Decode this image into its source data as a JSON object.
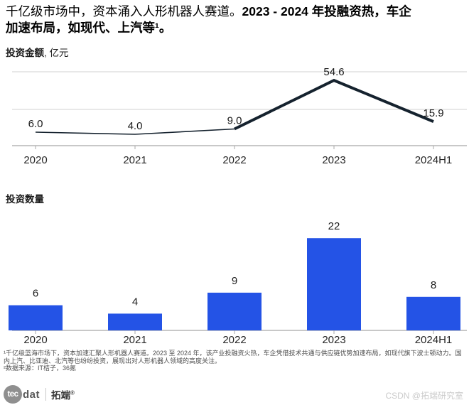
{
  "title": {
    "regular": "千亿级市场中，资本涌入人形机器人赛道。",
    "bold_line1": "2023 - 2024 年投融资热，车企",
    "bold_line2": "加速布局，如现代、上汽等¹。"
  },
  "sections": {
    "amount_label": "投资金额",
    "amount_unit": ", 亿元",
    "count_label": "投资数量"
  },
  "chart_data": [
    {
      "type": "line",
      "title": "投资金额",
      "unit": "亿元",
      "categories": [
        "2020",
        "2021",
        "2022",
        "2023",
        "2024H1"
      ],
      "values": [
        6.0,
        4.0,
        9.0,
        54.6,
        15.9
      ],
      "value_labels": [
        "6.0",
        "4.0",
        "9.0",
        "54.6",
        "15.9"
      ],
      "ylim": [
        0,
        60
      ],
      "grid": "horizontal",
      "legend": "none",
      "style_note": "thin line 2020-2022, thick emphasis line 2022-2024H1",
      "color": "#15222e"
    },
    {
      "type": "bar",
      "title": "投资数量",
      "categories": [
        "2020",
        "2021",
        "2022",
        "2023",
        "2024H1"
      ],
      "values": [
        6,
        4,
        9,
        22,
        8
      ],
      "value_labels": [
        "6",
        "4",
        "9",
        "22",
        "8"
      ],
      "ylim": [
        0,
        24
      ],
      "grid": "off",
      "legend": "none",
      "color": "#2453e6"
    }
  ],
  "footnotes": {
    "note1": "¹千亿级蓝海市场下，资本加速汇聚人形机器人赛道。2023 至 2024 年，该产业投融资火热，车企凭借技术共通与供应链优势加速布局，如现代旗下波士顿动力。国内上汽、比亚迪、北汽等也纷纷投资，展现出对人形机器人领域的高度关注。",
    "note2": "²数据来源：IT桔子，36氪"
  },
  "logo": {
    "circle_text": "tec",
    "wordmark": "dat",
    "brand_cn": "拓端",
    "registered": "®"
  },
  "watermark": "CSDN @拓端研究室",
  "colors": {
    "bar": "#2453e6",
    "line": "#15222e",
    "grid": "#d2d2d2",
    "axis": "#a8a8a8",
    "value_label": "#1a1a1a",
    "tick_label": "#262626"
  }
}
